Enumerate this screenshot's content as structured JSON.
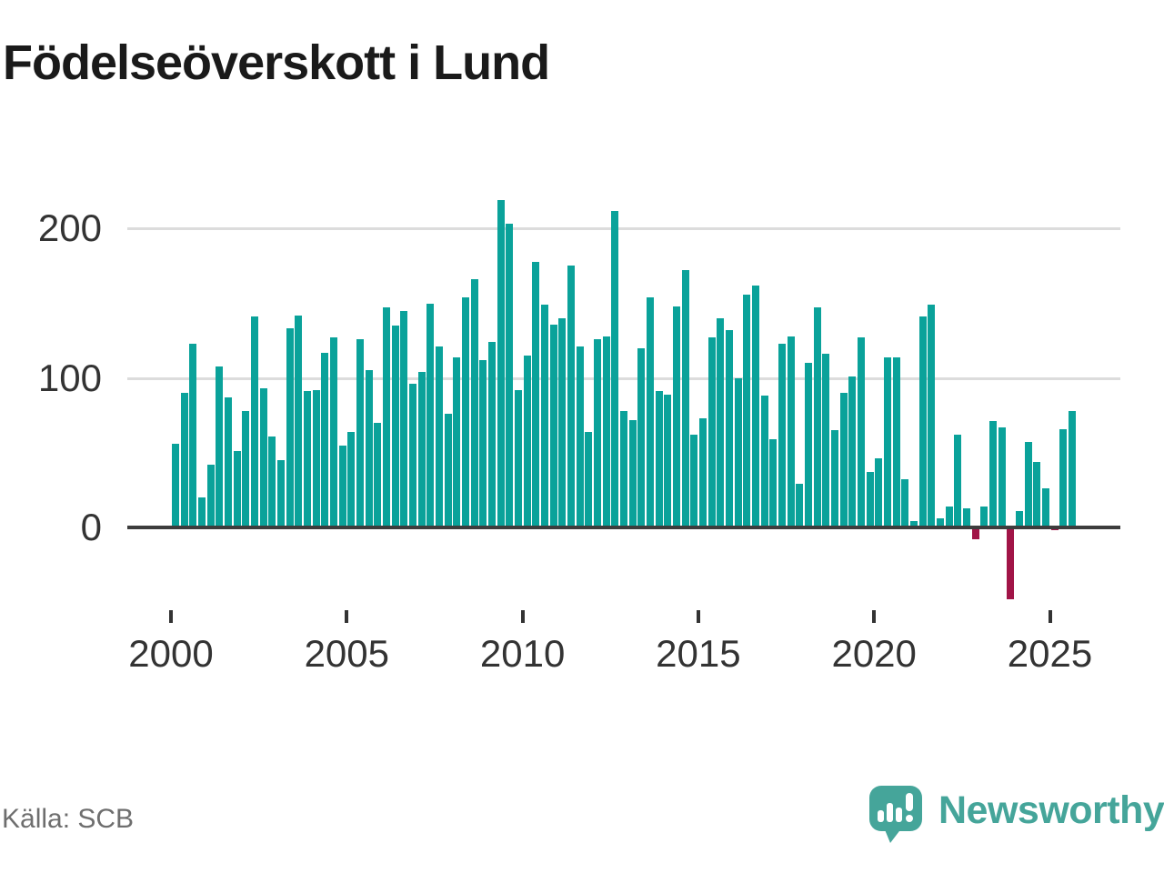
{
  "title": "Födelseöverskott i Lund",
  "source_label": "Källa: SCB",
  "branding": {
    "wordmark": "Newsworthy"
  },
  "colors": {
    "teal": "#0aa29a",
    "negative_red": "#a11447",
    "grid": "#dcdcdc",
    "axis": "#3d3d3d",
    "title_text": "#1a1a1a",
    "axis_text": "#333333",
    "source_text": "#6e6e6e",
    "logo_teal": "#45a59a",
    "page_bg": "#ffffff"
  },
  "chart_data": {
    "type": "bar",
    "title": "Födelseöverskott i Lund",
    "frequency": "quarterly",
    "start_period": "2000-Q1",
    "end_period": "2025-Q3",
    "x_axis_ticks": [
      "2000",
      "2005",
      "2010",
      "2015",
      "2020",
      "2025"
    ],
    "y_axis_ticks": [
      0,
      100,
      200
    ],
    "ylim": [
      -60,
      235
    ],
    "grid": "horizontal-only",
    "legend": "none",
    "bar_color_positive": "#0aa29a",
    "bar_color_negative": "#a11447",
    "values": [
      56,
      90,
      123,
      20,
      42,
      108,
      87,
      51,
      78,
      141,
      93,
      61,
      45,
      133,
      142,
      91,
      92,
      117,
      127,
      55,
      64,
      126,
      105,
      70,
      147,
      135,
      145,
      96,
      104,
      150,
      121,
      76,
      114,
      154,
      166,
      112,
      124,
      219,
      203,
      92,
      115,
      178,
      149,
      136,
      140,
      175,
      121,
      64,
      126,
      128,
      212,
      78,
      72,
      120,
      154,
      91,
      89,
      148,
      172,
      62,
      73,
      127,
      140,
      132,
      100,
      156,
      162,
      88,
      59,
      123,
      128,
      29,
      110,
      147,
      116,
      65,
      90,
      101,
      127,
      37,
      46,
      114,
      114,
      32,
      4,
      141,
      149,
      6,
      14,
      62,
      13,
      -8,
      14,
      71,
      67,
      -48,
      11,
      57,
      44,
      26,
      -2,
      66,
      78
    ]
  }
}
